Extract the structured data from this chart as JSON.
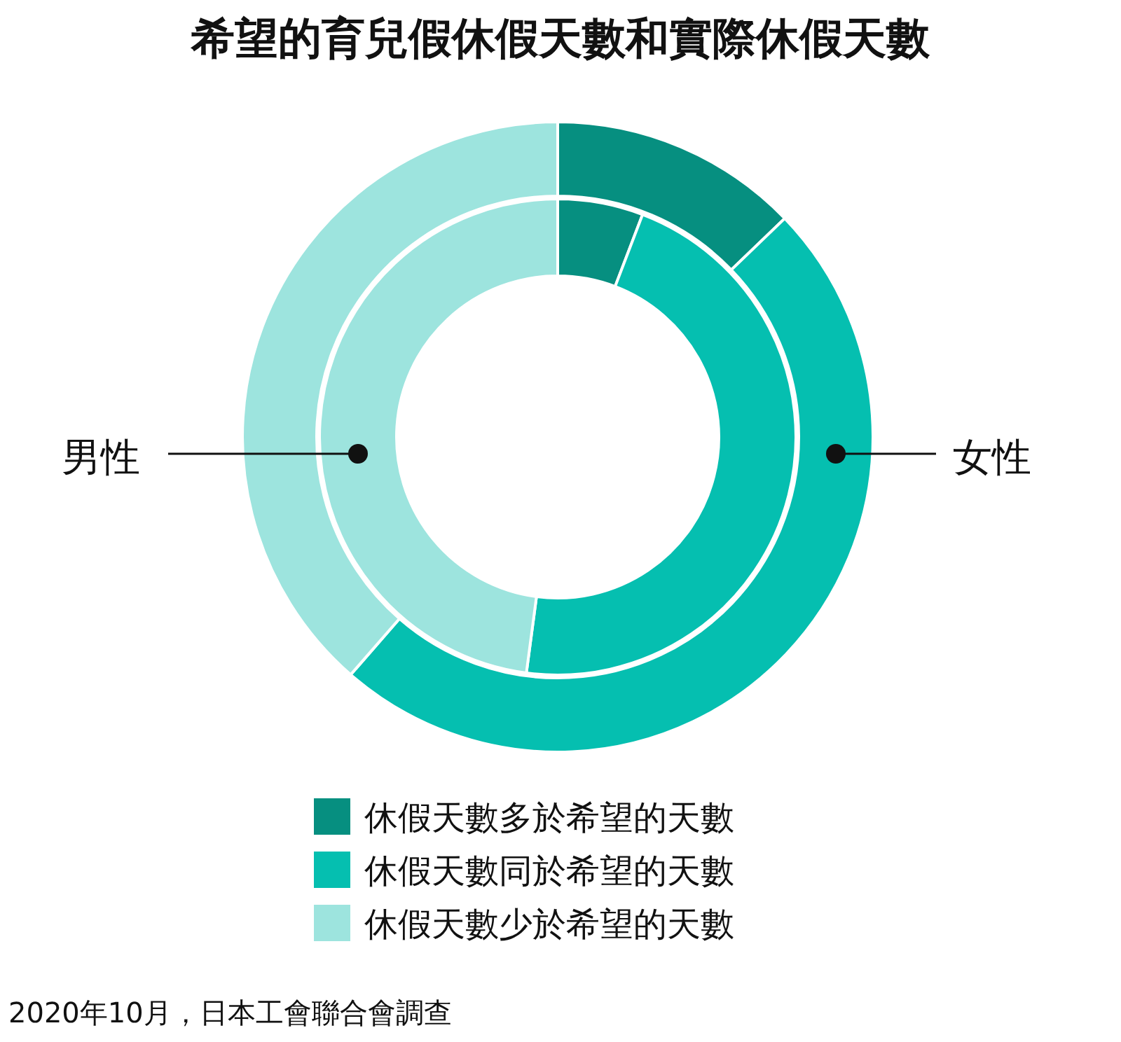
{
  "chart_data": {
    "type": "donut",
    "title": "希望的育兒假休假天數和實際休假天數",
    "categories": [
      "休假天數多於希望的天數",
      "休假天數同於希望的天數",
      "休假天數少於希望的天數"
    ],
    "colors": [
      "#068f80",
      "#05bfb0",
      "#9de4de"
    ],
    "series": [
      {
        "name": "女性",
        "values": [
          12.8,
          48.6,
          38.6
        ]
      },
      {
        "name": "男性",
        "values": [
          5.8,
          46.3,
          47.9
        ]
      }
    ],
    "legend": "bottom",
    "annotations": [
      "2020年10月，日本工會聯合會調查"
    ]
  }
}
